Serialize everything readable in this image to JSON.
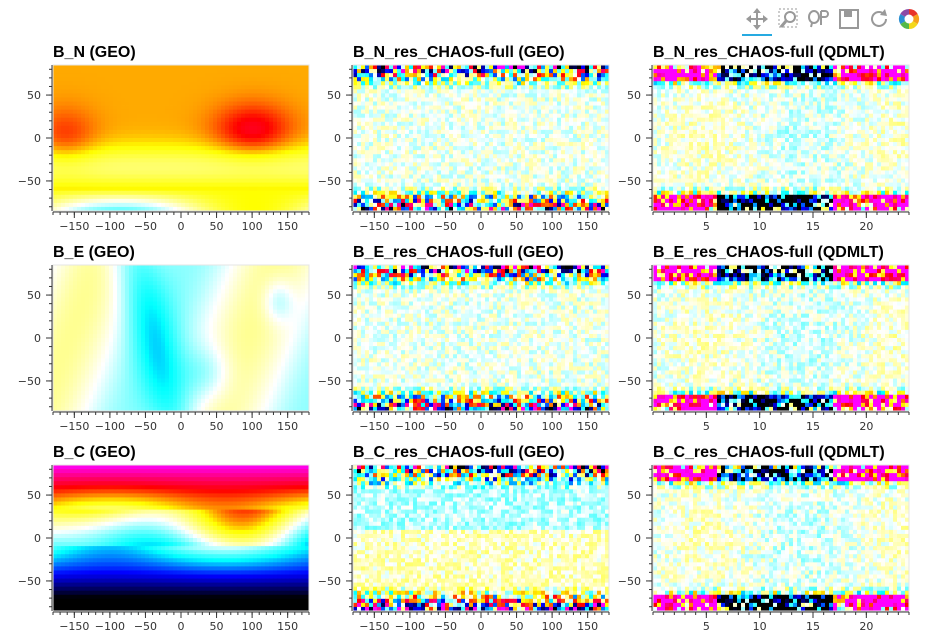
{
  "toolbar": {
    "tools": [
      {
        "name": "pan-tool-icon",
        "active": true
      },
      {
        "name": "box-zoom-tool-icon",
        "active": false
      },
      {
        "name": "lasso-select-tool-icon",
        "active": false
      },
      {
        "name": "save-tool-icon",
        "active": false
      },
      {
        "name": "reset-tool-icon",
        "active": false
      },
      {
        "name": "bokeh-logo-icon",
        "active": false
      }
    ],
    "active_color": "#26aae1"
  },
  "chart_data": [
    {
      "type": "heatmap",
      "title": "B_N (GEO)",
      "x_ticks": [
        "−150",
        "−100",
        "−50",
        "0",
        "50",
        "100",
        "150"
      ],
      "x_tick_values": [
        -150,
        -100,
        -50,
        0,
        50,
        100,
        150
      ],
      "xlim": [
        -180,
        180
      ],
      "y_ticks": [
        "50",
        "0",
        "−50"
      ],
      "y_tick_values": [
        50,
        0,
        -50
      ],
      "ylim": [
        -85,
        85
      ],
      "colormap": "diverging cyan-white-yellow-red-magenta",
      "pattern": "B_N"
    },
    {
      "type": "heatmap",
      "title": "B_N_res_CHAOS-full (GEO)",
      "x_ticks": [
        "−150",
        "−100",
        "−50",
        "0",
        "50",
        "100",
        "150"
      ],
      "x_tick_values": [
        -150,
        -100,
        -50,
        0,
        50,
        100,
        150
      ],
      "xlim": [
        -180,
        180
      ],
      "y_ticks": [
        "50",
        "0",
        "−50"
      ],
      "y_tick_values": [
        50,
        0,
        -50
      ],
      "ylim": [
        -85,
        85
      ],
      "colormap": "diverging",
      "pattern": "res_geo"
    },
    {
      "type": "heatmap",
      "title": "B_N_res_CHAOS-full (QDMLT)",
      "x_ticks": [
        "5",
        "10",
        "15",
        "20"
      ],
      "x_tick_values": [
        5,
        10,
        15,
        20
      ],
      "xlim": [
        0,
        24
      ],
      "y_ticks": [
        "50",
        "0",
        "−50"
      ],
      "y_tick_values": [
        50,
        0,
        -50
      ],
      "ylim": [
        -85,
        85
      ],
      "colormap": "diverging",
      "pattern": "res_qd"
    },
    {
      "type": "heatmap",
      "title": "B_E (GEO)",
      "x_ticks": [
        "−150",
        "−100",
        "−50",
        "0",
        "50",
        "100",
        "150"
      ],
      "x_tick_values": [
        -150,
        -100,
        -50,
        0,
        50,
        100,
        150
      ],
      "xlim": [
        -180,
        180
      ],
      "y_ticks": [
        "50",
        "0",
        "−50"
      ],
      "y_tick_values": [
        50,
        0,
        -50
      ],
      "ylim": [
        -85,
        85
      ],
      "colormap": "diverging",
      "pattern": "B_E"
    },
    {
      "type": "heatmap",
      "title": "B_E_res_CHAOS-full (GEO)",
      "x_ticks": [
        "−150",
        "−100",
        "−50",
        "0",
        "50",
        "100",
        "150"
      ],
      "x_tick_values": [
        -150,
        -100,
        -50,
        0,
        50,
        100,
        150
      ],
      "xlim": [
        -180,
        180
      ],
      "y_ticks": [
        "50",
        "0",
        "−50"
      ],
      "y_tick_values": [
        50,
        0,
        -50
      ],
      "ylim": [
        -85,
        85
      ],
      "colormap": "diverging",
      "pattern": "res_geo"
    },
    {
      "type": "heatmap",
      "title": "B_E_res_CHAOS-full (QDMLT)",
      "x_ticks": [
        "5",
        "10",
        "15",
        "20"
      ],
      "x_tick_values": [
        5,
        10,
        15,
        20
      ],
      "xlim": [
        0,
        24
      ],
      "y_ticks": [
        "50",
        "0",
        "−50"
      ],
      "y_tick_values": [
        50,
        0,
        -50
      ],
      "ylim": [
        -85,
        85
      ],
      "colormap": "diverging",
      "pattern": "res_qd_e"
    },
    {
      "type": "heatmap",
      "title": "B_C (GEO)",
      "x_ticks": [
        "−150",
        "−100",
        "−50",
        "0",
        "50",
        "100",
        "150"
      ],
      "x_tick_values": [
        -150,
        -100,
        -50,
        0,
        50,
        100,
        150
      ],
      "xlim": [
        -180,
        180
      ],
      "y_ticks": [
        "50",
        "0",
        "−50"
      ],
      "y_tick_values": [
        50,
        0,
        -50
      ],
      "ylim": [
        -85,
        85
      ],
      "colormap": "diverging",
      "pattern": "B_C"
    },
    {
      "type": "heatmap",
      "title": "B_C_res_CHAOS-full (GEO)",
      "x_ticks": [
        "−150",
        "−100",
        "−50",
        "0",
        "50",
        "100",
        "150"
      ],
      "x_tick_values": [
        -150,
        -100,
        -50,
        0,
        50,
        100,
        150
      ],
      "xlim": [
        -180,
        180
      ],
      "y_ticks": [
        "50",
        "0",
        "−50"
      ],
      "y_tick_values": [
        50,
        0,
        -50
      ],
      "ylim": [
        -85,
        85
      ],
      "colormap": "diverging",
      "pattern": "res_geo_c"
    },
    {
      "type": "heatmap",
      "title": "B_C_res_CHAOS-full (QDMLT)",
      "x_ticks": [
        "5",
        "10",
        "15",
        "20"
      ],
      "x_tick_values": [
        5,
        10,
        15,
        20
      ],
      "xlim": [
        0,
        24
      ],
      "y_ticks": [
        "50",
        "0",
        "−50"
      ],
      "y_tick_values": [
        50,
        0,
        -50
      ],
      "ylim": [
        -85,
        85
      ],
      "colormap": "diverging",
      "pattern": "res_qd_c"
    }
  ]
}
